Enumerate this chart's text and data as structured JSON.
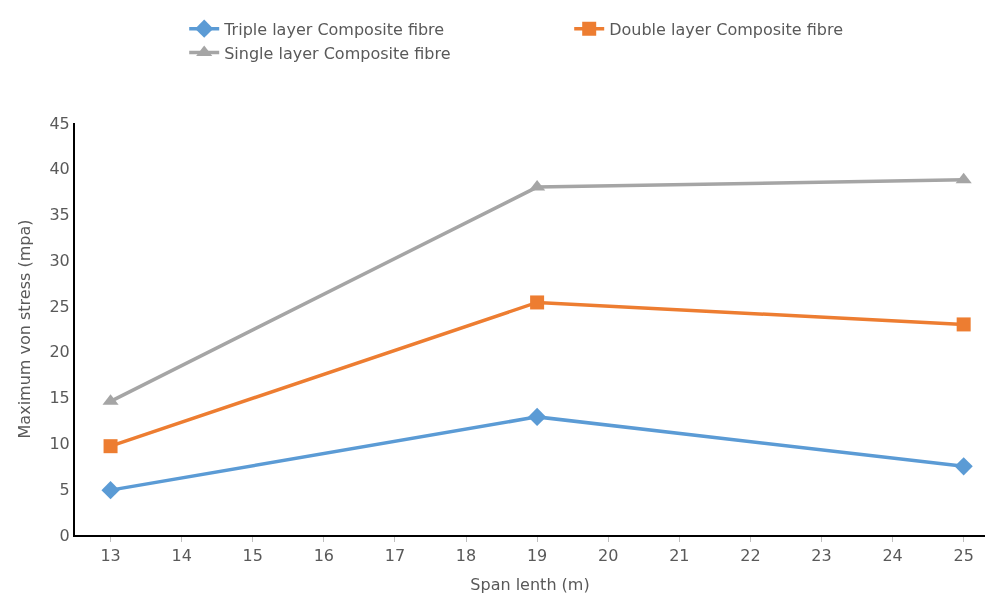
{
  "chart_data": {
    "type": "line",
    "xlabel": "Span lenth (m)",
    "ylabel": "Maximum von stress (mpa)",
    "x": [
      13,
      19,
      25
    ],
    "series": [
      {
        "name": "Triple layer Composite fibre",
        "color": "#5b9bd5",
        "values": [
          4.9,
          12.9,
          7.5
        ],
        "marker": "diamond"
      },
      {
        "name": "Double layer Composite fibre",
        "color": "#ed7d31",
        "values": [
          9.7,
          25.4,
          23.0
        ],
        "marker": "square"
      },
      {
        "name": "Single layer Composite fibre",
        "color": "#a5a5a5",
        "values": [
          14.6,
          38.0,
          38.8
        ],
        "marker": "triangle"
      }
    ],
    "xlim": [
      12.5,
      25.3
    ],
    "xticks": [
      13,
      14,
      15,
      16,
      17,
      18,
      19,
      20,
      21,
      22,
      23,
      24,
      25
    ],
    "ylim": [
      0,
      45
    ],
    "yticks": [
      0,
      5,
      10,
      15,
      20,
      25,
      30,
      35,
      40,
      45
    ],
    "legend": "top",
    "line_style": "solid"
  }
}
